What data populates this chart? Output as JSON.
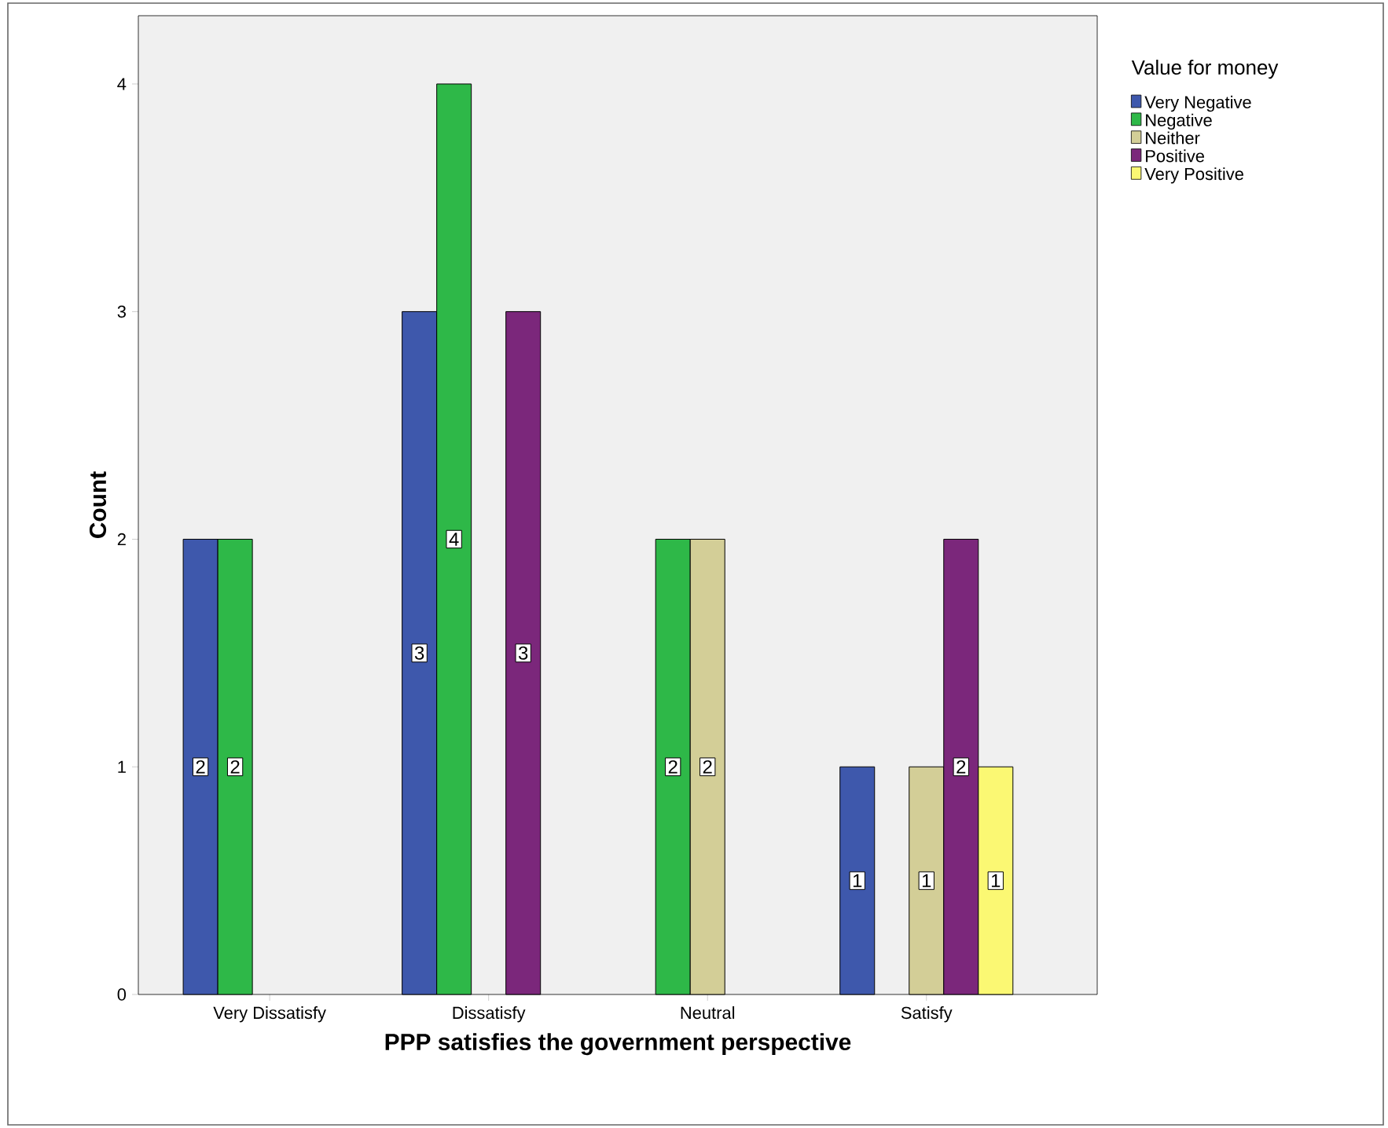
{
  "chart_data": {
    "type": "bar",
    "xlabel": "PPP satisfies the government perspective",
    "ylabel": "Count",
    "legend_title": "Value for money",
    "categories": [
      "Very Dissatisfy",
      "Dissatisfy",
      "Neutral",
      "Satisfy"
    ],
    "series": [
      {
        "name": "Very Negative",
        "color": "#3e58ac",
        "values": [
          2,
          3,
          null,
          1
        ]
      },
      {
        "name": "Negative",
        "color": "#2eb848",
        "values": [
          2,
          4,
          2,
          null
        ]
      },
      {
        "name": "Neither",
        "color": "#d3ce97",
        "values": [
          null,
          null,
          2,
          1
        ]
      },
      {
        "name": "Positive",
        "color": "#7b277b",
        "values": [
          null,
          3,
          null,
          2
        ]
      },
      {
        "name": "Very Positive",
        "color": "#fbf873",
        "values": [
          null,
          null,
          null,
          1
        ]
      }
    ],
    "ylim": [
      0,
      4.3
    ],
    "yticks": [
      0,
      1,
      2,
      3,
      4
    ],
    "grid": false,
    "legend": "top right",
    "data_labels": true
  }
}
